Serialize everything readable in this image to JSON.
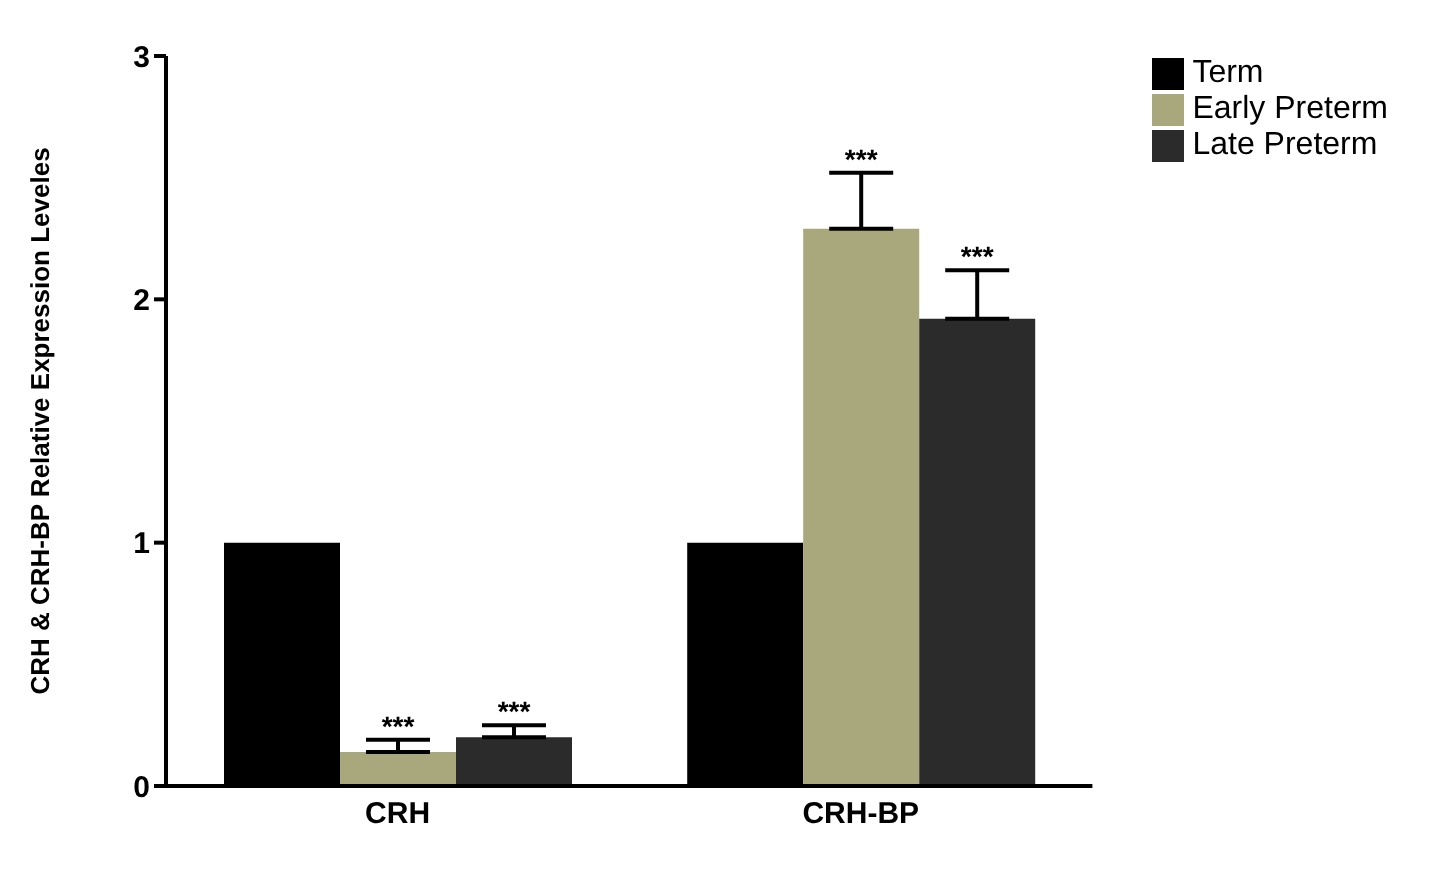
{
  "chart_data": {
    "type": "bar",
    "ylabel": "CRH & CRH-BP Relative Expression Leveles",
    "categories": [
      "CRH",
      "CRH-BP"
    ],
    "series": [
      {
        "name": "Term",
        "color": "#000000",
        "values": [
          1,
          1
        ]
      },
      {
        "name": "Early Preterm",
        "color": "#a9a77c",
        "values": [
          0.14,
          2.29
        ],
        "errors": [
          [
            0.14,
            0.19
          ],
          [
            2.29,
            2.52
          ]
        ]
      },
      {
        "name": "Late Preterm",
        "color": "#2b2b2b",
        "values": [
          0.2,
          1.92
        ],
        "errors": [
          [
            0.2,
            0.25
          ],
          [
            1.92,
            2.12
          ]
        ]
      }
    ],
    "ylim": [
      0,
      3
    ],
    "yticks": [
      0,
      1,
      2,
      3
    ],
    "grid": false,
    "legend": "top right",
    "annotations": [
      "***",
      "***",
      "***",
      "***"
    ]
  }
}
